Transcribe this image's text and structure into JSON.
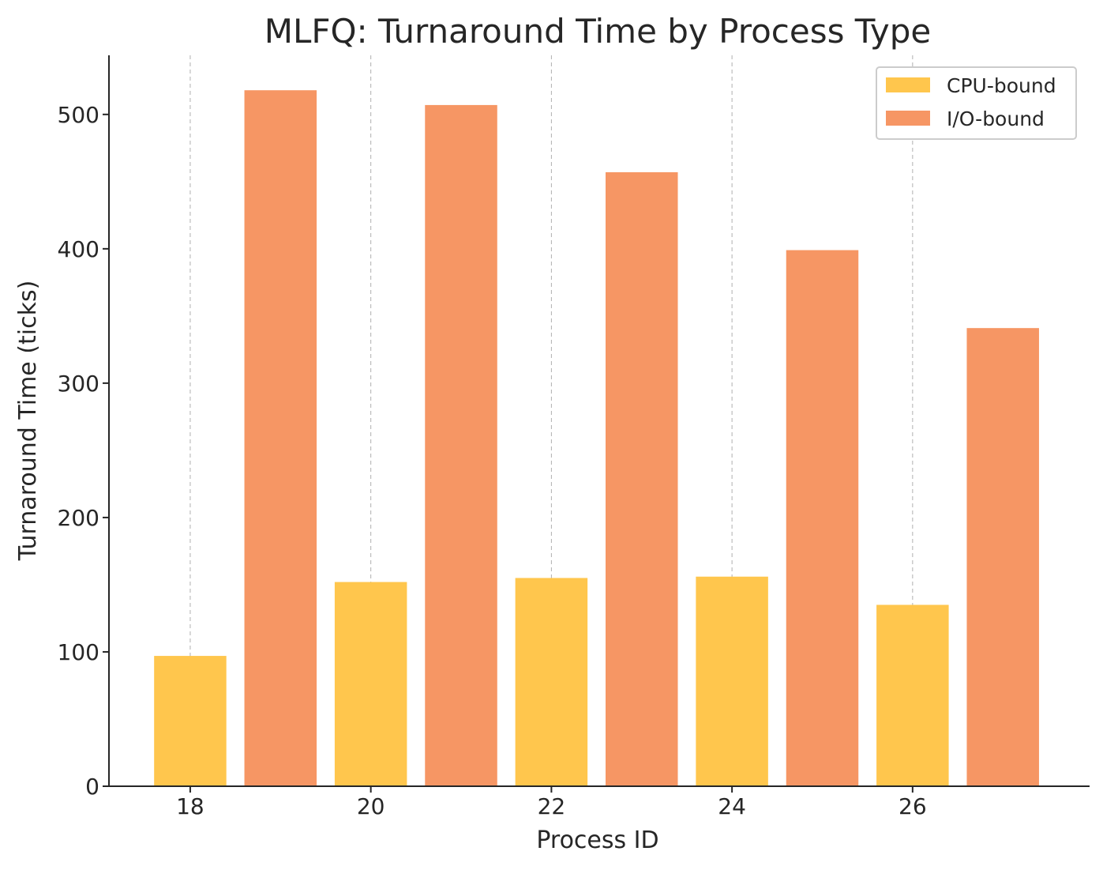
{
  "chart_data": {
    "type": "bar",
    "title": "MLFQ: Turnaround Time by Process Type",
    "xlabel": "Process ID",
    "ylabel": "Turnaround Time (ticks)",
    "xlim": [
      17.1,
      27.96
    ],
    "ylim": [
      0,
      544
    ],
    "x_ticks": [
      18,
      20,
      22,
      24,
      26
    ],
    "y_ticks": [
      0,
      100,
      200,
      300,
      400,
      500
    ],
    "grid": {
      "x": true,
      "y": false,
      "style": "dashed"
    },
    "legend_position": "top-right",
    "series": [
      {
        "name": "CPU-bound",
        "color": "#FFC64D",
        "x": [
          18,
          20,
          22,
          24,
          26
        ],
        "values": [
          97,
          152,
          155,
          156,
          135
        ]
      },
      {
        "name": "I/O-bound",
        "color": "#F69664",
        "x": [
          19,
          21,
          23,
          25,
          27
        ],
        "values": [
          518,
          507,
          457,
          399,
          341
        ]
      }
    ]
  }
}
